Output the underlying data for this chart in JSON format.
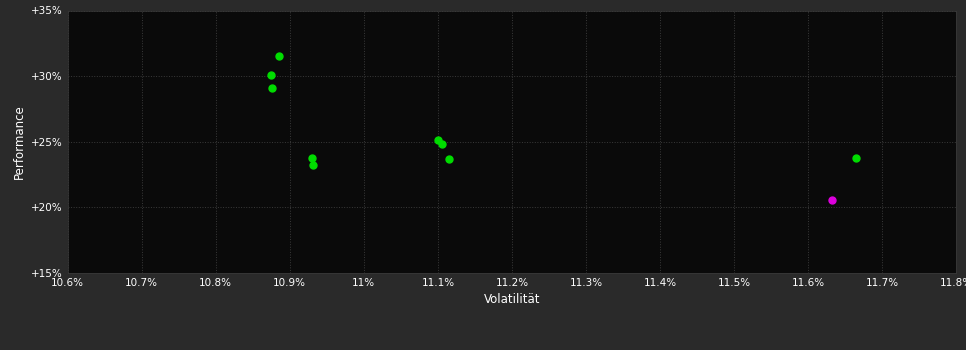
{
  "background_color": "#2a2a2a",
  "plot_bg_color": "#0a0a0a",
  "grid_color": "#3a3a3a",
  "text_color": "#ffffff",
  "xlabel": "Volatilität",
  "ylabel": "Performance",
  "xlim": [
    10.6,
    11.8
  ],
  "ylim": [
    15.0,
    35.0
  ],
  "xtick_labels": [
    "10.6%",
    "10.7%",
    "10.8%",
    "10.9%",
    "11%",
    "11.1%",
    "11.2%",
    "11.3%",
    "11.4%",
    "11.5%",
    "11.6%",
    "11.7%",
    "11.8%"
  ],
  "xtick_values": [
    10.6,
    10.7,
    10.8,
    10.9,
    11.0,
    11.1,
    11.2,
    11.3,
    11.4,
    11.5,
    11.6,
    11.7,
    11.8
  ],
  "ytick_labels": [
    "+15%",
    "+20%",
    "+25%",
    "+30%",
    "+35%"
  ],
  "ytick_values": [
    15.0,
    20.0,
    25.0,
    30.0,
    35.0
  ],
  "green_points": [
    [
      10.885,
      31.5
    ],
    [
      10.875,
      30.1
    ],
    [
      10.876,
      29.1
    ],
    [
      10.93,
      23.8
    ],
    [
      10.932,
      23.2
    ],
    [
      11.1,
      25.1
    ],
    [
      11.105,
      24.8
    ],
    [
      11.115,
      23.7
    ],
    [
      11.665,
      23.8
    ]
  ],
  "magenta_points": [
    [
      11.632,
      20.6
    ]
  ],
  "marker_size": 5,
  "green_color": "#00dd00",
  "magenta_color": "#dd00dd"
}
